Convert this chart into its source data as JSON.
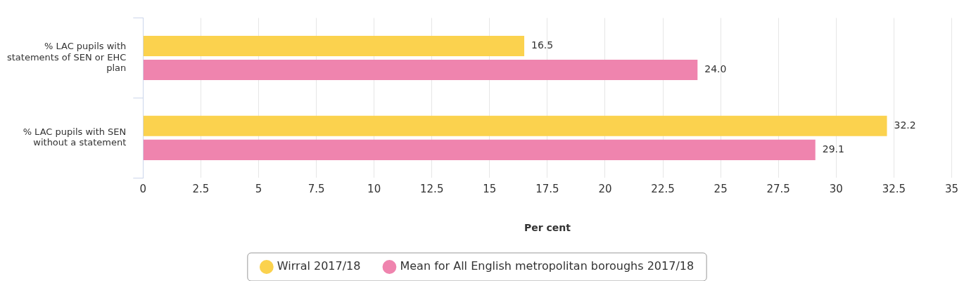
{
  "chart_data": {
    "type": "bar",
    "orientation": "horizontal",
    "xlabel": "Per cent",
    "categories": [
      "% LAC pupils with statements of SEN or EHC plan",
      "% LAC pupils with SEN without a statement"
    ],
    "series": [
      {
        "name": "Wirral 2017/18",
        "color": "#fbd24e",
        "values": [
          16.5,
          32.2
        ],
        "value_labels": [
          "16.5",
          "32.2"
        ]
      },
      {
        "name": "Mean for All English metropolitan boroughs 2017/18",
        "color": "#ef84ae",
        "values": [
          24.0,
          29.1
        ],
        "value_labels": [
          "24.0",
          "29.1"
        ]
      }
    ],
    "xlim": [
      0,
      35
    ],
    "xticks": [
      0,
      2.5,
      5,
      7.5,
      10,
      12.5,
      15,
      17.5,
      20,
      22.5,
      25,
      27.5,
      30,
      32.5,
      35
    ],
    "grid": "x",
    "legend": "bottom"
  }
}
